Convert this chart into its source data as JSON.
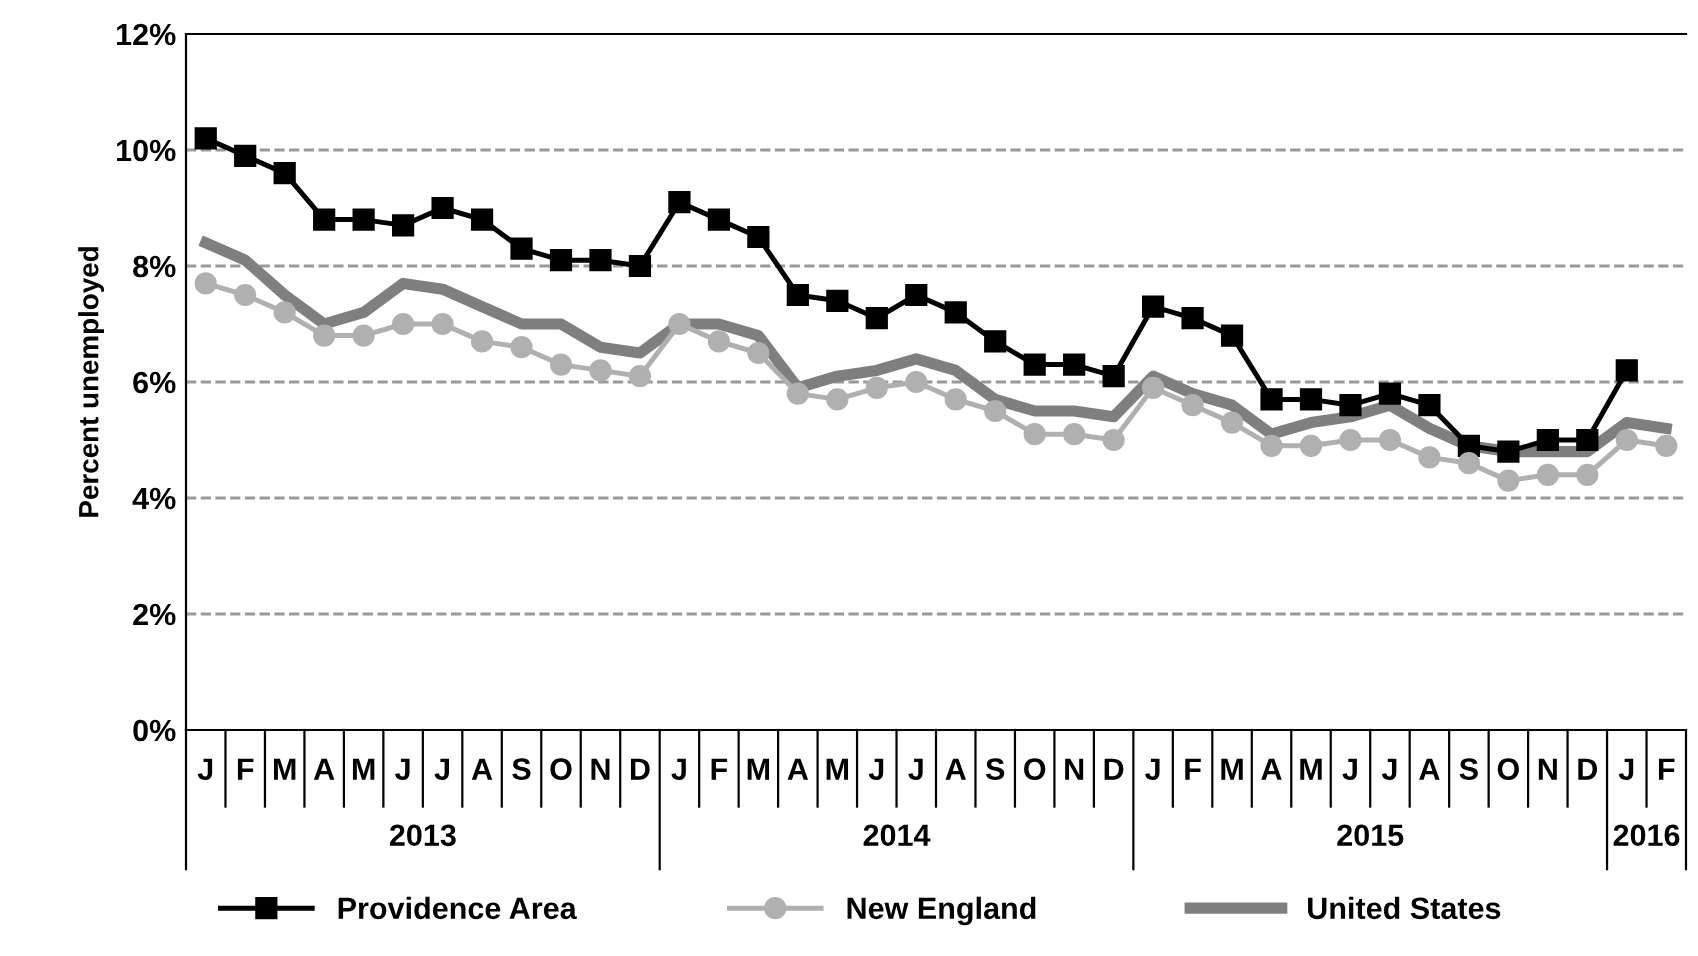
{
  "chart_data": {
    "type": "line",
    "ylabel": "Percent unemployed",
    "categories": [
      "J",
      "F",
      "M",
      "A",
      "M",
      "J",
      "J",
      "A",
      "S",
      "O",
      "N",
      "D",
      "J",
      "F",
      "M",
      "A",
      "M",
      "J",
      "J",
      "A",
      "S",
      "O",
      "N",
      "D",
      "J",
      "F",
      "M",
      "A",
      "M",
      "J",
      "J",
      "A",
      "S",
      "O",
      "N",
      "D",
      "J",
      "F"
    ],
    "annotations": [
      "2013",
      "2014",
      "2015",
      "2016"
    ],
    "series": [
      {
        "name": "Providence Area",
        "color": "#000000",
        "marker": "square",
        "values": [
          10.2,
          9.9,
          9.6,
          8.8,
          8.8,
          8.7,
          9.0,
          8.8,
          8.3,
          8.1,
          8.1,
          8.0,
          9.1,
          8.8,
          8.5,
          7.5,
          7.4,
          7.1,
          7.5,
          7.2,
          6.7,
          6.3,
          6.3,
          6.1,
          7.3,
          7.1,
          6.8,
          5.7,
          5.7,
          5.6,
          5.8,
          5.6,
          4.9,
          4.8,
          5.0,
          5.0,
          6.2,
          null
        ]
      },
      {
        "name": "New England",
        "color": "#b0b0b0",
        "marker": "circle",
        "values": [
          7.7,
          7.5,
          7.2,
          6.8,
          6.8,
          7.0,
          7.0,
          6.7,
          6.6,
          6.3,
          6.2,
          6.1,
          7.0,
          6.7,
          6.5,
          5.8,
          5.7,
          5.9,
          6.0,
          5.7,
          5.5,
          5.1,
          5.1,
          5.0,
          5.9,
          5.6,
          5.3,
          4.9,
          4.9,
          5.0,
          5.0,
          4.7,
          4.6,
          4.3,
          4.4,
          4.4,
          5.0,
          4.9
        ]
      },
      {
        "name": "United States",
        "color": "#7f7f7f",
        "marker": "none",
        "values": [
          8.4,
          8.1,
          7.5,
          7.0,
          7.2,
          7.7,
          7.6,
          7.3,
          7.0,
          7.0,
          6.6,
          6.5,
          7.0,
          7.0,
          6.8,
          5.9,
          6.1,
          6.2,
          6.4,
          6.2,
          5.7,
          5.5,
          5.5,
          5.4,
          6.1,
          5.8,
          5.6,
          5.1,
          5.3,
          5.4,
          5.6,
          5.2,
          4.9,
          4.8,
          4.8,
          4.8,
          5.3,
          5.2
        ]
      }
    ],
    "ylim": [
      0,
      12
    ],
    "yticks": [
      {
        "value": 0,
        "label": "0%"
      },
      {
        "value": 2,
        "label": "2%"
      },
      {
        "value": 4,
        "label": "4%"
      },
      {
        "value": 6,
        "label": "6%"
      },
      {
        "value": 8,
        "label": "8%"
      },
      {
        "value": 10,
        "label": "10%"
      },
      {
        "value": 12,
        "label": "12%"
      }
    ],
    "grid": "y",
    "legend": "bottom",
    "line_style": "solid"
  }
}
